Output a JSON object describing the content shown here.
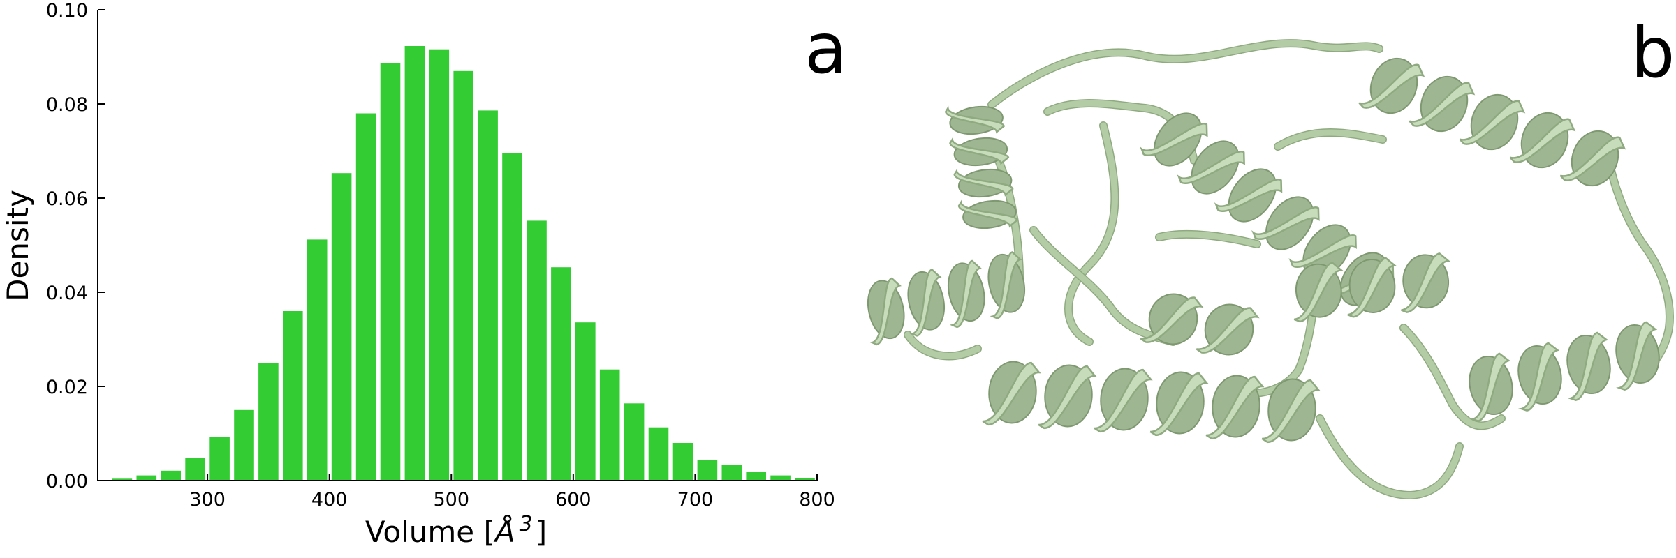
{
  "panel_labels": {
    "a": "a",
    "b": "b"
  },
  "colors": {
    "bar": "#33cc33",
    "ribbon": "#c7dcba"
  },
  "chart_data": {
    "type": "bar",
    "title": "",
    "xlabel": "Volume [Å$^3$]",
    "xlabel_main": "Volume [",
    "xlabel_unit": "Å",
    "xlabel_exp": "3",
    "xlabel_close": "]",
    "ylabel": "Density",
    "xlim": [
      210,
      800
    ],
    "ylim": [
      0,
      0.1
    ],
    "xticks": [
      300,
      400,
      500,
      600,
      700,
      800
    ],
    "yticks": [
      0.0,
      0.02,
      0.04,
      0.06,
      0.08,
      0.1
    ],
    "ytick_labels": [
      "0.00",
      "0.02",
      "0.04",
      "0.06",
      "0.08",
      "0.10"
    ],
    "bin_width": 20,
    "x": [
      230,
      250,
      270,
      290,
      310,
      330,
      350,
      370,
      390,
      410,
      430,
      450,
      470,
      490,
      510,
      530,
      550,
      570,
      590,
      610,
      630,
      650,
      670,
      690,
      710,
      730,
      750,
      770,
      790
    ],
    "values": [
      0.0004,
      0.0011,
      0.0021,
      0.0048,
      0.0092,
      0.015,
      0.025,
      0.036,
      0.0512,
      0.0653,
      0.078,
      0.0887,
      0.0923,
      0.0916,
      0.087,
      0.0786,
      0.0696,
      0.0552,
      0.0453,
      0.0336,
      0.0236,
      0.0164,
      0.0113,
      0.008,
      0.0044,
      0.0034,
      0.0018,
      0.0011,
      0.0006
    ],
    "grid": false,
    "legend": "none"
  }
}
